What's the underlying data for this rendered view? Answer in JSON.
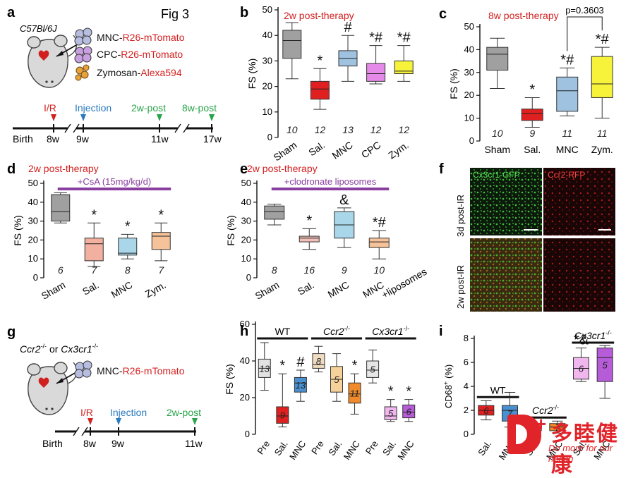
{
  "figure_title": "Fig 3",
  "panel_a": {
    "letter": "a",
    "strain": "C57Bl/6J",
    "cells": [
      {
        "name": "MNC",
        "label": "R26-mTomato"
      },
      {
        "name": "CPC",
        "label": "R26-mTomato"
      },
      {
        "name": "Zymosan",
        "label": "Alexa594"
      }
    ],
    "timeline": {
      "events": [
        "I/R",
        "Injection",
        "2w-post",
        "8w-post"
      ],
      "ticks": [
        "Birth",
        "8w",
        "9w",
        "11w",
        "17w"
      ]
    }
  },
  "panel_g": {
    "letter": "g",
    "strain_1": "Ccr2",
    "strain_2": "Cx3cr1",
    "ko": "-/-",
    "or": "or",
    "cells": [
      {
        "name": "MNC",
        "label": "R26-mTomato"
      }
    ],
    "timeline": {
      "events": [
        "I/R",
        "Injection",
        "2w-post"
      ],
      "ticks": [
        "Birth",
        "8w",
        "9w",
        "11w"
      ]
    }
  },
  "panel_f": {
    "letter": "f",
    "channels": [
      "Cx3cr1-GFP",
      "Ccr2-RFP"
    ],
    "rows": [
      "3d post-IR",
      "2w post-IR"
    ],
    "colors": {
      "gfp": "#1f8f2a",
      "rfp": "#9a1010"
    }
  },
  "colors": {
    "gray": "#a0a0a0",
    "red": "#e02020",
    "blue": "#9ec2e0",
    "pink": "#e58ae8",
    "yellow": "#f7f23a",
    "lightblue": "#a9d6e8",
    "peach": "#f6c29a",
    "salmon": "#f2c0a8",
    "wtpre": "#e2e2e2",
    "ccrpre": "#f0dcc0",
    "ccrsal": "#f6d29a",
    "ccrmnc": "#f08a2a",
    "cxpre": "#e6e6e6",
    "cxsal": "#f0b6ee",
    "cxmnc": "#b65cd8",
    "sig": "#d42020",
    "treat": "#8a3fa0"
  },
  "chart_data": [
    {
      "panel": "b",
      "type": "box",
      "title": "2w post-therapy",
      "ylabel": "FS (%)",
      "ylim": [
        0,
        50
      ],
      "yticks": [
        0,
        10,
        20,
        30,
        40,
        50
      ],
      "categories": [
        "Sham",
        "Sal.",
        "MNC",
        "CPC",
        "Zym."
      ],
      "n": [
        "10",
        "12",
        "13",
        "12",
        "12"
      ],
      "marks": [
        "",
        "*",
        "#",
        "*#",
        "*#"
      ],
      "colors": [
        "#a0a0a0",
        "#e02020",
        "#9ec2e0",
        "#e58ae8",
        "#f7f23a"
      ],
      "boxes": [
        {
          "min": 23,
          "q1": 31,
          "median": 38,
          "q3": 42,
          "max": 45
        },
        {
          "min": 11,
          "q1": 15,
          "median": 19,
          "q3": 22,
          "max": 27
        },
        {
          "min": 22,
          "q1": 28,
          "median": 31,
          "q3": 34,
          "max": 40
        },
        {
          "min": 21,
          "q1": 22,
          "median": 25,
          "q3": 29,
          "max": 36
        },
        {
          "min": 22,
          "q1": 25,
          "median": 26,
          "q3": 30,
          "max": 36
        }
      ]
    },
    {
      "panel": "c",
      "type": "box",
      "title": "8w post-therapy",
      "ylabel": "FS (%)",
      "ylim": [
        0,
        50
      ],
      "yticks": [
        0,
        10,
        20,
        30,
        40,
        50
      ],
      "categories": [
        "Sham",
        "Sal.",
        "MNC",
        "Zym."
      ],
      "n": [
        "10",
        "9",
        "11",
        "11"
      ],
      "marks": [
        "",
        "*",
        "*#",
        "*#"
      ],
      "colors": [
        "#a0a0a0",
        "#e02020",
        "#9ec2e0",
        "#f7f23a"
      ],
      "pvalue": "p=0.3603",
      "boxes": [
        {
          "min": 23,
          "q1": 31,
          "median": 38,
          "q3": 41,
          "max": 45
        },
        {
          "min": 6,
          "q1": 9,
          "median": 12,
          "q3": 14,
          "max": 19
        },
        {
          "min": 11,
          "q1": 13,
          "median": 22,
          "q3": 28,
          "max": 32
        },
        {
          "min": 10,
          "q1": 19,
          "median": 25,
          "q3": 37,
          "max": 41
        }
      ]
    },
    {
      "panel": "d",
      "type": "box",
      "title": "2w post-therapy",
      "ylabel": "FS (%)",
      "treatment": "+CsA (15mg/kg/d)",
      "ylim": [
        0,
        50
      ],
      "yticks": [
        0,
        10,
        20,
        30,
        40,
        50
      ],
      "categories": [
        "Sham",
        "Sal.",
        "MNC",
        "Zym."
      ],
      "n": [
        "6",
        "7",
        "8",
        "7"
      ],
      "marks": [
        "",
        "*",
        "*",
        "*"
      ],
      "colors": [
        "#a0a0a0",
        "#f2b0a0",
        "#a9d6e8",
        "#f6c29a"
      ],
      "boxes": [
        {
          "min": 29,
          "q1": 30,
          "median": 35,
          "q3": 44,
          "max": 45
        },
        {
          "min": 6,
          "q1": 9,
          "median": 18,
          "q3": 21,
          "max": 29
        },
        {
          "min": 10,
          "q1": 12,
          "median": 13,
          "q3": 21,
          "max": 23
        },
        {
          "min": 9,
          "q1": 15,
          "median": 22,
          "q3": 24,
          "max": 29
        }
      ]
    },
    {
      "panel": "e",
      "type": "box",
      "title": "2w post-therapy",
      "ylabel": "FS (%)",
      "treatment": "+clodronate liposomes",
      "ylim": [
        0,
        50
      ],
      "yticks": [
        0,
        10,
        20,
        30,
        40,
        50
      ],
      "categories": [
        "Sham",
        "Sal.",
        "MNC",
        "MNC +liposomes"
      ],
      "n": [
        "8",
        "16",
        "9",
        "10"
      ],
      "marks": [
        "",
        "*",
        "&",
        "*#"
      ],
      "colors": [
        "#a0a0a0",
        "#f2c0b8",
        "#a9d6e8",
        "#f6c29a"
      ],
      "boxes": [
        {
          "min": 28,
          "q1": 31,
          "median": 35,
          "q3": 38,
          "max": 39
        },
        {
          "min": 15,
          "q1": 19,
          "median": 21,
          "q3": 22,
          "max": 26
        },
        {
          "min": 16,
          "q1": 21,
          "median": 28,
          "q3": 35,
          "max": 37
        },
        {
          "min": 10,
          "q1": 16,
          "median": 19,
          "q3": 21,
          "max": 25
        }
      ]
    },
    {
      "panel": "h",
      "type": "box",
      "ylabel": "FS (%)",
      "ylim": [
        0,
        60
      ],
      "yticks": [
        0,
        20,
        40,
        60
      ],
      "groups": [
        {
          "name": "WT",
          "sup": ""
        },
        {
          "name": "Ccr2",
          "sup": "-/-"
        },
        {
          "name": "Cx3cr1",
          "sup": "-/-"
        }
      ],
      "categories": [
        "Pre",
        "Sal.",
        "MNC",
        "Pre",
        "Sal.",
        "MNC",
        "Pre",
        "Sal.",
        "MNC"
      ],
      "n": [
        "13",
        "9",
        "13",
        "8",
        "5",
        "11",
        "5",
        "5",
        "6"
      ],
      "marks": [
        "",
        "*",
        "#",
        "",
        "",
        "*",
        "",
        "*",
        "*"
      ],
      "colors": [
        "#e2e2e2",
        "#e02020",
        "#4a90d0",
        "#f0dcc0",
        "#f6d29a",
        "#f08a2a",
        "#e6e6e6",
        "#f0b6ee",
        "#b65cd8"
      ],
      "boxes": [
        {
          "min": 24,
          "q1": 31,
          "median": 36,
          "q3": 41,
          "max": 50
        },
        {
          "min": 4,
          "q1": 6,
          "median": 10,
          "q3": 15,
          "max": 33
        },
        {
          "min": 18,
          "q1": 23,
          "median": 28,
          "q3": 31,
          "max": 35
        },
        {
          "min": 34,
          "q1": 36,
          "median": 38,
          "q3": 44,
          "max": 48
        },
        {
          "min": 18,
          "q1": 23,
          "median": 30,
          "q3": 37,
          "max": 44
        },
        {
          "min": 11,
          "q1": 17,
          "median": 22,
          "q3": 28,
          "max": 33
        },
        {
          "min": 28,
          "q1": 31,
          "median": 35,
          "q3": 40,
          "max": 46
        },
        {
          "min": 7,
          "q1": 8,
          "median": 10,
          "q3": 15,
          "max": 19
        },
        {
          "min": 7,
          "q1": 9,
          "median": 12,
          "q3": 16,
          "max": 19
        }
      ]
    },
    {
      "panel": "i",
      "type": "box",
      "ylabel": "CD68+ (%)",
      "ylim": [
        0,
        8
      ],
      "yticks": [
        0,
        2,
        4,
        6,
        8
      ],
      "groups": [
        {
          "name": "WT",
          "sup": ""
        },
        {
          "name": "Ccr2",
          "sup": "-/-"
        },
        {
          "name": "Cx3cr1",
          "sup": "-/-"
        }
      ],
      "categories": [
        "Sal.",
        "MNC",
        "Sal.",
        "MNC",
        "Sal.",
        "MNC"
      ],
      "n": [
        "6",
        "7",
        "5",
        "7",
        "6",
        "5"
      ],
      "marks": [
        "",
        "",
        "",
        "",
        "*&",
        ""
      ],
      "colors": [
        "#e02020",
        "#4a90d0",
        "#f0dcc0",
        "#f08a2a",
        "#f0b6ee",
        "#b65cd8"
      ],
      "boxes": [
        {
          "min": 1.2,
          "q1": 1.6,
          "median": 2.0,
          "q3": 2.4,
          "max": 2.8
        },
        {
          "min": 0.6,
          "q1": 1.1,
          "median": 2.0,
          "q3": 2.4,
          "max": 3.5
        },
        {
          "min": 0.1,
          "q1": 0.3,
          "median": 0.6,
          "q3": 0.8,
          "max": 0.9
        },
        {
          "min": 0.1,
          "q1": 0.3,
          "median": 0.6,
          "q3": 0.9,
          "max": 1.1
        },
        {
          "min": 4.4,
          "q1": 4.6,
          "median": 5.5,
          "q3": 6.4,
          "max": 7.2
        },
        {
          "min": 3.0,
          "q1": 4.4,
          "median": 6.4,
          "q3": 7.2,
          "max": 7.4
        }
      ]
    }
  ],
  "watermark": {
    "cn": "多睦健康",
    "en": "Do more for our health"
  }
}
